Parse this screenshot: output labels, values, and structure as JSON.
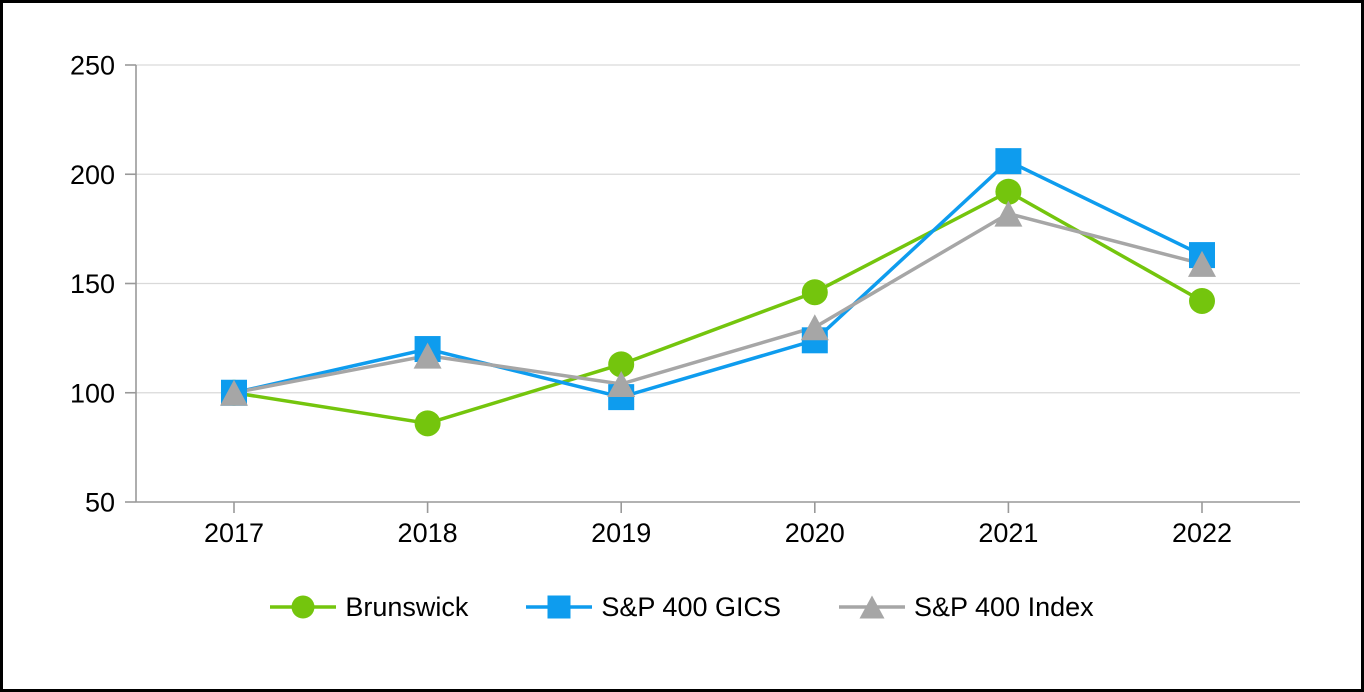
{
  "chart_data": {
    "type": "line",
    "x": [
      "2017",
      "2018",
      "2019",
      "2020",
      "2021",
      "2022"
    ],
    "series": [
      {
        "name": "Brunswick",
        "marker": "circle",
        "color": "#74C50D",
        "values": [
          100,
          86,
          113,
          146,
          192,
          142
        ]
      },
      {
        "name": "S&P 400 GICS",
        "marker": "square",
        "color": "#0E9CEE",
        "values": [
          100,
          120,
          98,
          124,
          206,
          163
        ]
      },
      {
        "name": "S&P 400 Index",
        "marker": "triangle",
        "color": "#A6A6A6",
        "values": [
          100,
          117,
          104,
          130,
          182,
          159
        ]
      }
    ],
    "title": "",
    "xlabel": "",
    "ylabel": "",
    "ylim": [
      50,
      250
    ],
    "yticks": [
      50,
      100,
      150,
      200,
      250
    ],
    "grid": true,
    "legend_position": "bottom"
  },
  "styles": {
    "grid_color": "#D9D9D9",
    "axis_color": "#999999",
    "tick_color": "#999999",
    "text_color": "#000000",
    "border_color": "#000000",
    "background": "#FFFFFF"
  }
}
